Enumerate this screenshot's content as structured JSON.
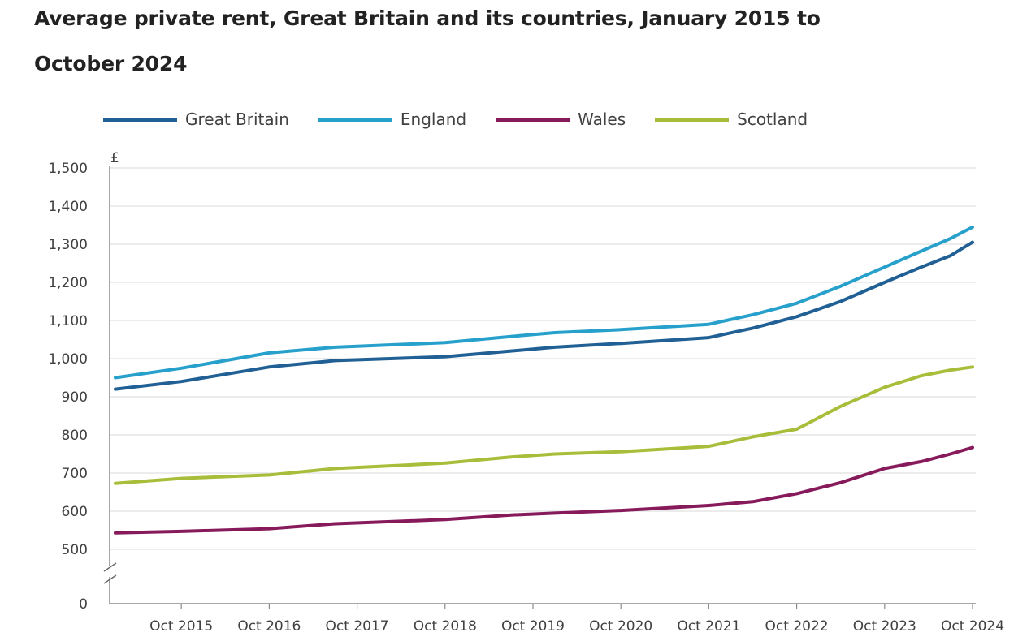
{
  "chart_data": {
    "type": "line",
    "title_lines": [
      "Average private rent, Great Britain and its countries, January 2015 to",
      "October 2024"
    ],
    "ylabel": "£",
    "ylim": [
      500,
      1500
    ],
    "axis_break": true,
    "y_ticks": [
      1500,
      1400,
      1300,
      1200,
      1100,
      1000,
      900,
      800,
      700,
      600,
      500,
      0
    ],
    "y_tick_labels": [
      "1,500",
      "1,400",
      "1,300",
      "1,200",
      "1,100",
      "1,000",
      "900",
      "800",
      "700",
      "600",
      "500",
      "0"
    ],
    "x_tick_labels": [
      "Oct 2015",
      "Oct 2016",
      "Oct 2017",
      "Oct 2018",
      "Oct 2019",
      "Oct 2020",
      "Oct 2021",
      "Oct 2022",
      "Oct 2023",
      "Oct 2024"
    ],
    "x_tick_month_index": [
      9,
      21,
      33,
      45,
      57,
      69,
      81,
      93,
      105,
      117
    ],
    "x_month_count": 118,
    "grid": true,
    "legend_position": "top",
    "series": [
      {
        "name": "Great Britain",
        "color": "#206095",
        "points": [
          [
            0,
            920
          ],
          [
            9,
            940
          ],
          [
            21,
            978
          ],
          [
            30,
            995
          ],
          [
            45,
            1005
          ],
          [
            54,
            1020
          ],
          [
            60,
            1030
          ],
          [
            69,
            1040
          ],
          [
            81,
            1055
          ],
          [
            87,
            1080
          ],
          [
            93,
            1110
          ],
          [
            99,
            1150
          ],
          [
            105,
            1200
          ],
          [
            110,
            1240
          ],
          [
            114,
            1270
          ],
          [
            117,
            1305
          ]
        ]
      },
      {
        "name": "England",
        "color": "#27a0cc",
        "points": [
          [
            0,
            950
          ],
          [
            9,
            975
          ],
          [
            21,
            1015
          ],
          [
            30,
            1030
          ],
          [
            45,
            1042
          ],
          [
            54,
            1058
          ],
          [
            60,
            1068
          ],
          [
            69,
            1076
          ],
          [
            81,
            1090
          ],
          [
            87,
            1115
          ],
          [
            93,
            1145
          ],
          [
            99,
            1190
          ],
          [
            105,
            1240
          ],
          [
            110,
            1282
          ],
          [
            114,
            1315
          ],
          [
            117,
            1345
          ]
        ]
      },
      {
        "name": "Wales",
        "color": "#871a5b",
        "points": [
          [
            0,
            543
          ],
          [
            9,
            547
          ],
          [
            21,
            554
          ],
          [
            30,
            567
          ],
          [
            45,
            578
          ],
          [
            54,
            590
          ],
          [
            60,
            595
          ],
          [
            69,
            602
          ],
          [
            81,
            615
          ],
          [
            87,
            625
          ],
          [
            93,
            646
          ],
          [
            99,
            675
          ],
          [
            105,
            712
          ],
          [
            110,
            730
          ],
          [
            114,
            750
          ],
          [
            117,
            767
          ]
        ]
      },
      {
        "name": "Scotland",
        "color": "#a8bd3a",
        "points": [
          [
            0,
            673
          ],
          [
            9,
            686
          ],
          [
            21,
            695
          ],
          [
            30,
            712
          ],
          [
            45,
            726
          ],
          [
            54,
            742
          ],
          [
            60,
            750
          ],
          [
            69,
            756
          ],
          [
            81,
            770
          ],
          [
            87,
            795
          ],
          [
            93,
            815
          ],
          [
            99,
            875
          ],
          [
            105,
            925
          ],
          [
            110,
            955
          ],
          [
            114,
            970
          ],
          [
            117,
            978
          ]
        ]
      }
    ]
  }
}
